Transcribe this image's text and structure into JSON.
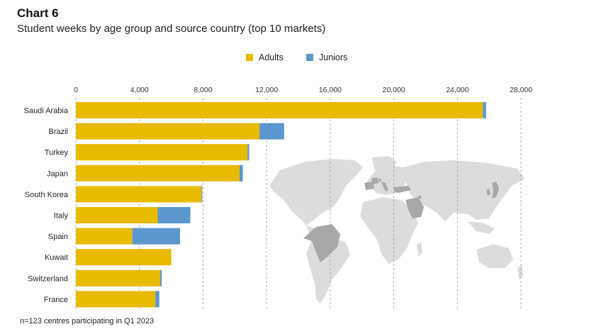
{
  "heading": "Chart 6",
  "subtitle": "Student weeks by age group and source country (top 10 markets)",
  "footnote": "n=123 centres participating in Q1 2023",
  "colors": {
    "adults": "#e8ba00",
    "juniors": "#5b96cf",
    "grid": "#9a9a9a",
    "map_land": "#dcdcdc",
    "map_highlight": "#a8a8a8"
  },
  "chart_data": {
    "type": "bar",
    "orientation": "horizontal",
    "stacked": true,
    "categories": [
      "Saudi Arabia",
      "Brazil",
      "Turkey",
      "Japan",
      "South Korea",
      "Italy",
      "Spain",
      "Kuwait",
      "Switzerland",
      "France"
    ],
    "series": [
      {
        "name": "Adults",
        "values": [
          25600,
          11550,
          10800,
          10300,
          7900,
          5150,
          3550,
          6000,
          5300,
          5000
        ]
      },
      {
        "name": "Juniors",
        "values": [
          200,
          1550,
          100,
          200,
          50,
          2050,
          3000,
          0,
          100,
          250
        ]
      }
    ],
    "xlim": [
      0,
      28000
    ],
    "xticks": [
      "0",
      "4,000",
      "8,000",
      "12,000",
      "16,000",
      "20,000",
      "24,000",
      "28,000"
    ],
    "xtick_values": [
      0,
      4000,
      8000,
      12000,
      16000,
      20000,
      24000,
      28000
    ],
    "grid": "vertical dashed",
    "x_axis_position": "top",
    "legend": "top-center",
    "background": "world map with highlighted source countries"
  }
}
